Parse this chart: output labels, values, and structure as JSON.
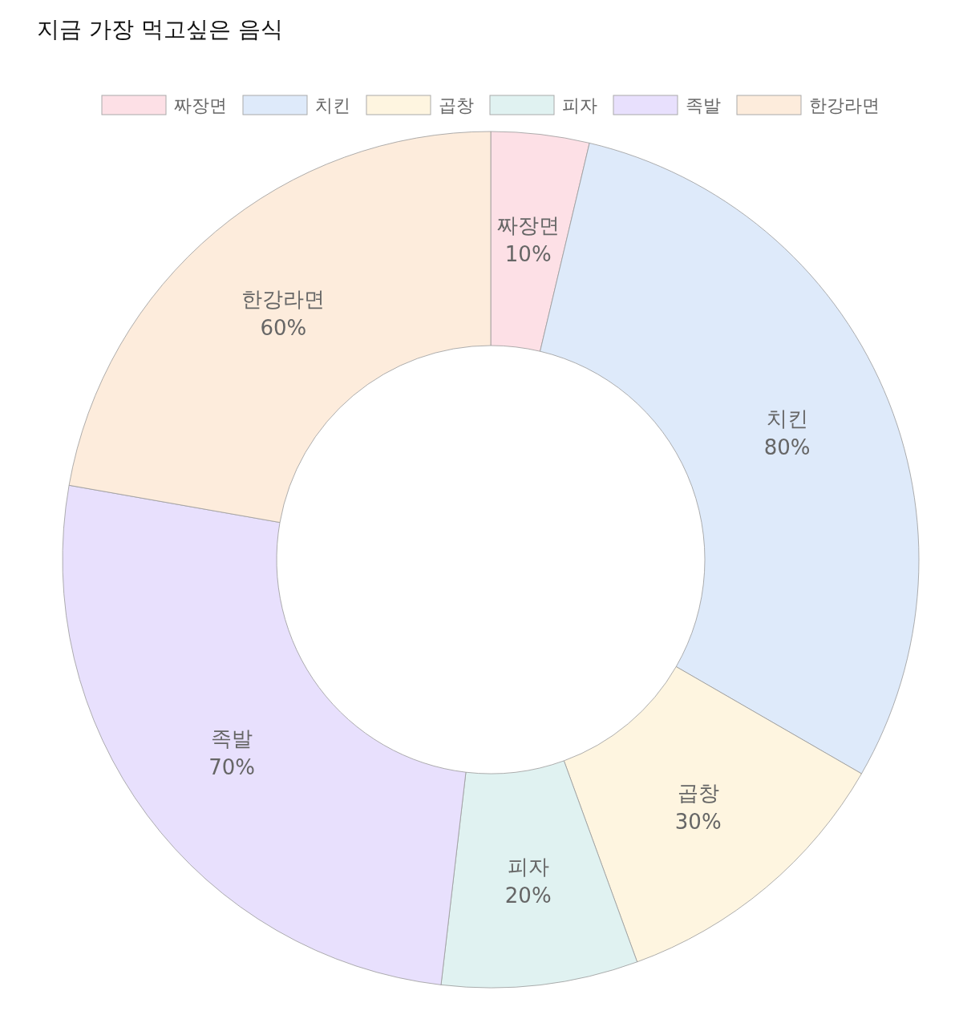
{
  "chart_data": {
    "type": "donut",
    "title": "지금 가장 먹고싶은 음식",
    "categories": [
      "짜장면",
      "치킨",
      "곱창",
      "피자",
      "족발",
      "한강라면"
    ],
    "values": [
      10,
      80,
      30,
      20,
      70,
      60
    ],
    "value_labels": [
      "10%",
      "80%",
      "30%",
      "20%",
      "70%",
      "60%"
    ],
    "colors": [
      "#fde0e6",
      "#deeafa",
      "#fef5e0",
      "#e0f2f1",
      "#e8e0fd",
      "#fdecdc"
    ],
    "legend": "top"
  }
}
